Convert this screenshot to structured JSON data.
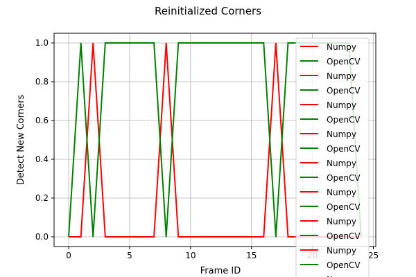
{
  "chart_data": {
    "type": "line",
    "title": "Reinitialized Corners",
    "xlabel": "Frame ID",
    "ylabel": "Detect New Corners",
    "xlim": [
      -1.2,
      25.2
    ],
    "ylim": [
      -0.05,
      1.05
    ],
    "xticks": [
      0,
      5,
      10,
      15,
      20,
      25
    ],
    "yticks": [
      0.0,
      0.2,
      0.4,
      0.6,
      0.8,
      1.0
    ],
    "xtick_labels": [
      "0",
      "5",
      "10",
      "15",
      "20",
      "25"
    ],
    "ytick_labels": [
      "0.0",
      "0.2",
      "0.4",
      "0.6",
      "0.8",
      "1.0"
    ],
    "grid": true,
    "legend_position": "upper right",
    "colors": {
      "Numpy": "#ff0000",
      "OpenCV": "#008000"
    },
    "x": [
      0,
      1,
      2,
      3,
      4,
      5,
      6,
      7,
      8,
      9,
      10,
      11,
      12,
      13,
      14,
      15,
      16,
      17,
      18,
      19,
      20,
      21,
      22,
      23,
      24
    ],
    "series": [
      {
        "name": "Numpy",
        "values": [
          0,
          0,
          1,
          0,
          0,
          0,
          0,
          0,
          1,
          0,
          0,
          0,
          0,
          0,
          0,
          0,
          0,
          1,
          0,
          0,
          0,
          0,
          0,
          0,
          0
        ]
      },
      {
        "name": "OpenCV",
        "values": [
          0,
          1,
          0,
          1,
          1,
          1,
          1,
          1,
          0,
          1,
          1,
          1,
          1,
          1,
          1,
          1,
          1,
          0,
          1,
          1,
          1,
          1,
          1,
          1,
          0
        ]
      }
    ],
    "legend_entries": [
      {
        "label": "Numpy",
        "series": "Numpy"
      },
      {
        "label": "OpenCV",
        "series": "OpenCV"
      },
      {
        "label": "Numpy",
        "series": "Numpy"
      },
      {
        "label": "OpenCV",
        "series": "OpenCV"
      },
      {
        "label": "Numpy",
        "series": "Numpy"
      },
      {
        "label": "OpenCV",
        "series": "OpenCV"
      },
      {
        "label": "Numpy",
        "series": "Numpy"
      },
      {
        "label": "OpenCV",
        "series": "OpenCV"
      },
      {
        "label": "Numpy",
        "series": "Numpy"
      },
      {
        "label": "OpenCV",
        "series": "OpenCV"
      },
      {
        "label": "Numpy",
        "series": "Numpy"
      },
      {
        "label": "OpenCV",
        "series": "OpenCV"
      },
      {
        "label": "Numpy",
        "series": "Numpy"
      },
      {
        "label": "OpenCV",
        "series": "OpenCV"
      },
      {
        "label": "Numpy",
        "series": "Numpy"
      },
      {
        "label": "OpenCV",
        "series": "OpenCV"
      },
      {
        "label": "Numpy",
        "series": "Numpy"
      }
    ]
  }
}
